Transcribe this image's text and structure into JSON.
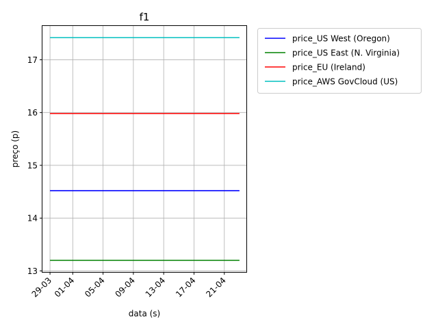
{
  "chart_data": {
    "type": "line",
    "title": "f1",
    "xlabel": "data (s)",
    "ylabel": "preço (p)",
    "x_start": "2021-03-29",
    "x_end": "2021-04-23",
    "xlim": [
      "2021-03-28",
      "2021-04-24"
    ],
    "ylim": [
      12.98,
      17.64
    ],
    "x_ticks": [
      {
        "date": "2021-03-29",
        "label": "29-03"
      },
      {
        "date": "2021-04-01",
        "label": "01-04"
      },
      {
        "date": "2021-04-05",
        "label": "05-04"
      },
      {
        "date": "2021-04-09",
        "label": "09-04"
      },
      {
        "date": "2021-04-13",
        "label": "13-04"
      },
      {
        "date": "2021-04-17",
        "label": "17-04"
      },
      {
        "date": "2021-04-21",
        "label": "21-04"
      }
    ],
    "y_ticks": [
      {
        "value": 13,
        "label": "13"
      },
      {
        "value": 14,
        "label": "14"
      },
      {
        "value": 15,
        "label": "15"
      },
      {
        "value": 16,
        "label": "16"
      },
      {
        "value": 17,
        "label": "17"
      }
    ],
    "grid": true,
    "legend_position": "outside-right",
    "series": [
      {
        "name": "price_US West (Oregon)",
        "color": "#0000ff",
        "value": 14.52
      },
      {
        "name": "price_US East (N. Virginia)",
        "color": "#008000",
        "value": 13.2
      },
      {
        "name": "price_EU (Ireland)",
        "color": "#ff0000",
        "value": 15.98
      },
      {
        "name": "price_AWS GovCloud (US)",
        "color": "#00bfbf",
        "value": 17.42
      }
    ]
  }
}
